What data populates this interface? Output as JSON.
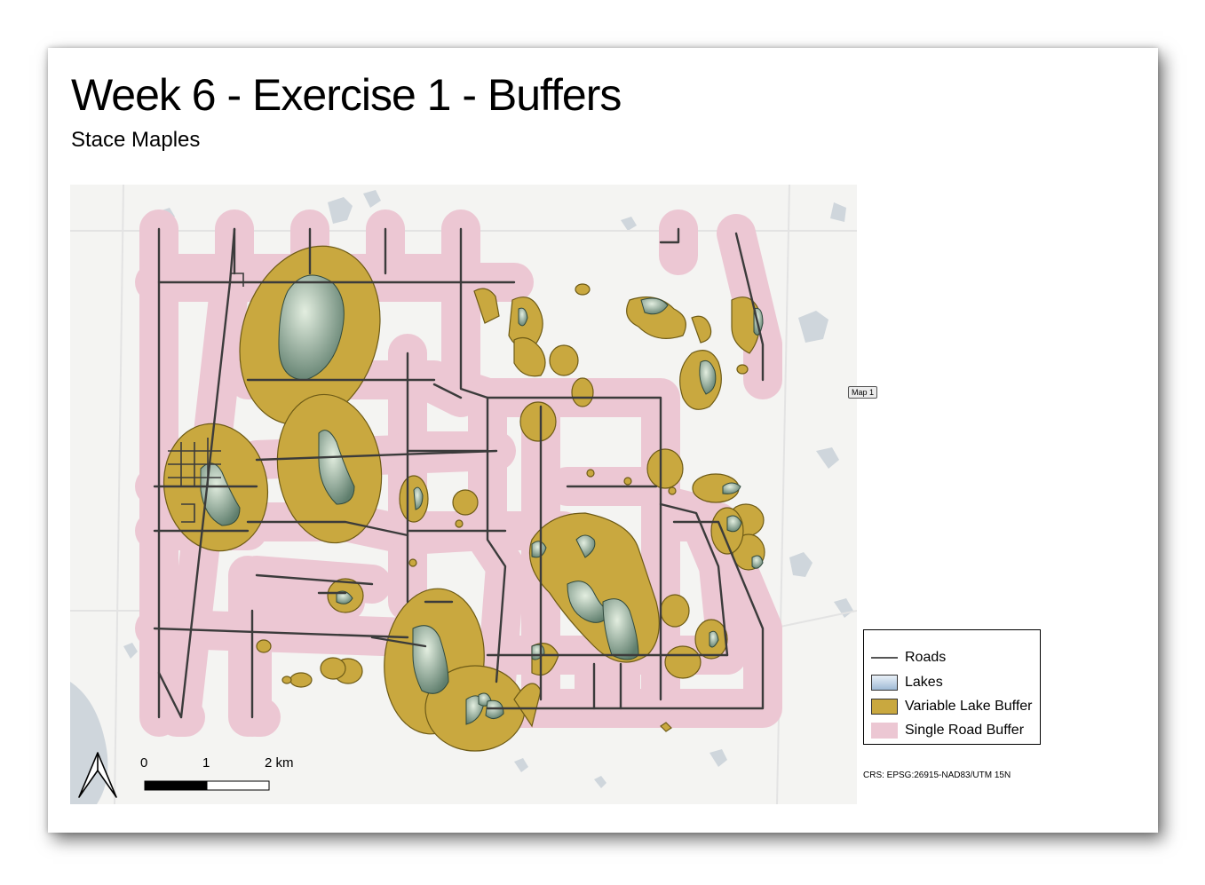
{
  "layout": {
    "title": "Week 6 - Exercise 1 - Buffers",
    "subtitle": "Stace Maples",
    "map_label": "Map 1"
  },
  "legend": {
    "items": [
      {
        "label": "Roads",
        "symbol": "line",
        "color": "#555555"
      },
      {
        "label": "Lakes",
        "symbol": "box",
        "color": "#b9cfe6"
      },
      {
        "label": "Variable Lake Buffer",
        "symbol": "box",
        "color": "#c9a83f"
      },
      {
        "label": "Single Road Buffer",
        "symbol": "box",
        "color": "#ecc7d3"
      }
    ]
  },
  "scale_bar": {
    "labels": [
      "0",
      "1",
      "2 km"
    ]
  },
  "north_arrow": "north-arrow-icon",
  "crs": "CRS: EPSG:26915-NAD83/UTM 15N",
  "colors": {
    "basemap": "#f4f4f2",
    "basemap_water": "#cfd6dc",
    "road_buffer": "#ecc7d3",
    "lake_buffer": "#c9a83f",
    "lake_fill_light": "#d9e8d8",
    "lake_fill_dark": "#6d8a78",
    "road": "#3b3b3b"
  }
}
